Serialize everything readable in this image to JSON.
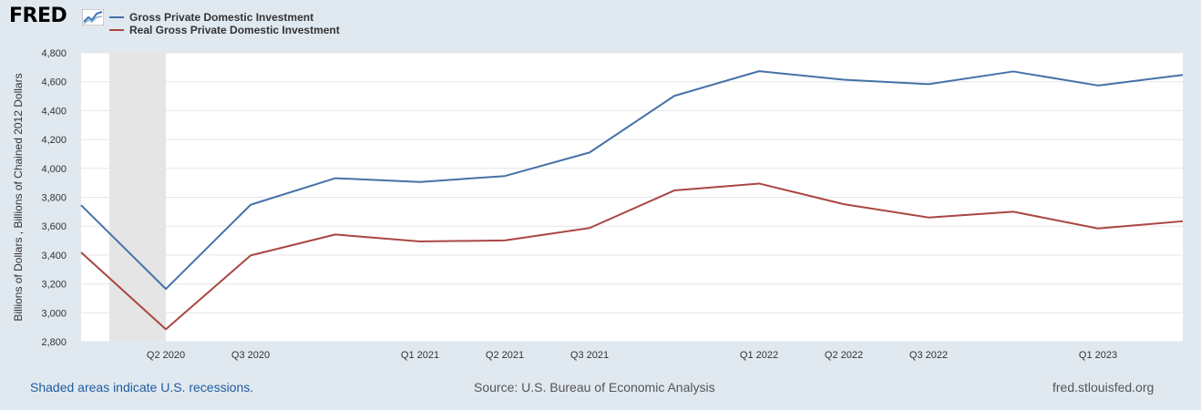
{
  "header": {
    "logo_text": "FRED",
    "logo_icon": "fred-chart-icon"
  },
  "chart_data": {
    "type": "line",
    "categories": [
      "Q1 2020",
      "Q2 2020",
      "Q3 2020",
      "Q4 2020",
      "Q1 2021",
      "Q2 2021",
      "Q3 2021",
      "Q4 2021",
      "Q1 2022",
      "Q2 2022",
      "Q3 2022",
      "Q4 2022",
      "Q1 2023",
      "Q2 2023"
    ],
    "tick_labels": [
      "Q2 2020",
      "Q3 2020",
      "Q1 2021",
      "Q2 2021",
      "Q3 2021",
      "Q1 2022",
      "Q2 2022",
      "Q3 2022",
      "Q1 2023"
    ],
    "series": [
      {
        "name": "Gross Private Domestic Investment",
        "color": "#4572a7",
        "values": [
          3745,
          3165,
          3748,
          3932,
          3906,
          3947,
          4110,
          4502,
          4673,
          4614,
          4583,
          4671,
          4574,
          4647
        ]
      },
      {
        "name": "Real Gross Private Domestic Investment",
        "color": "#aa4643",
        "values": [
          3418,
          2886,
          3397,
          3542,
          3494,
          3501,
          3587,
          3847,
          3895,
          3752,
          3660,
          3700,
          3584,
          3634
        ]
      }
    ],
    "ylabel": "Billions of Dollars , Billions of Chained 2012 Dollars",
    "ylim": [
      2800,
      4800
    ],
    "yticks": [
      "4,800",
      "4,600",
      "4,400",
      "4,200",
      "4,000",
      "3,800",
      "3,600",
      "3,400",
      "3,200",
      "3,000",
      "2,800"
    ],
    "recession": {
      "from": "Q1 2020",
      "to": "Q2 2020"
    },
    "grid": true
  },
  "footer": {
    "note": "Shaded areas indicate U.S. recessions.",
    "source": "Source: U.S. Bureau of Economic Analysis",
    "site": "fred.stlouisfed.org"
  }
}
